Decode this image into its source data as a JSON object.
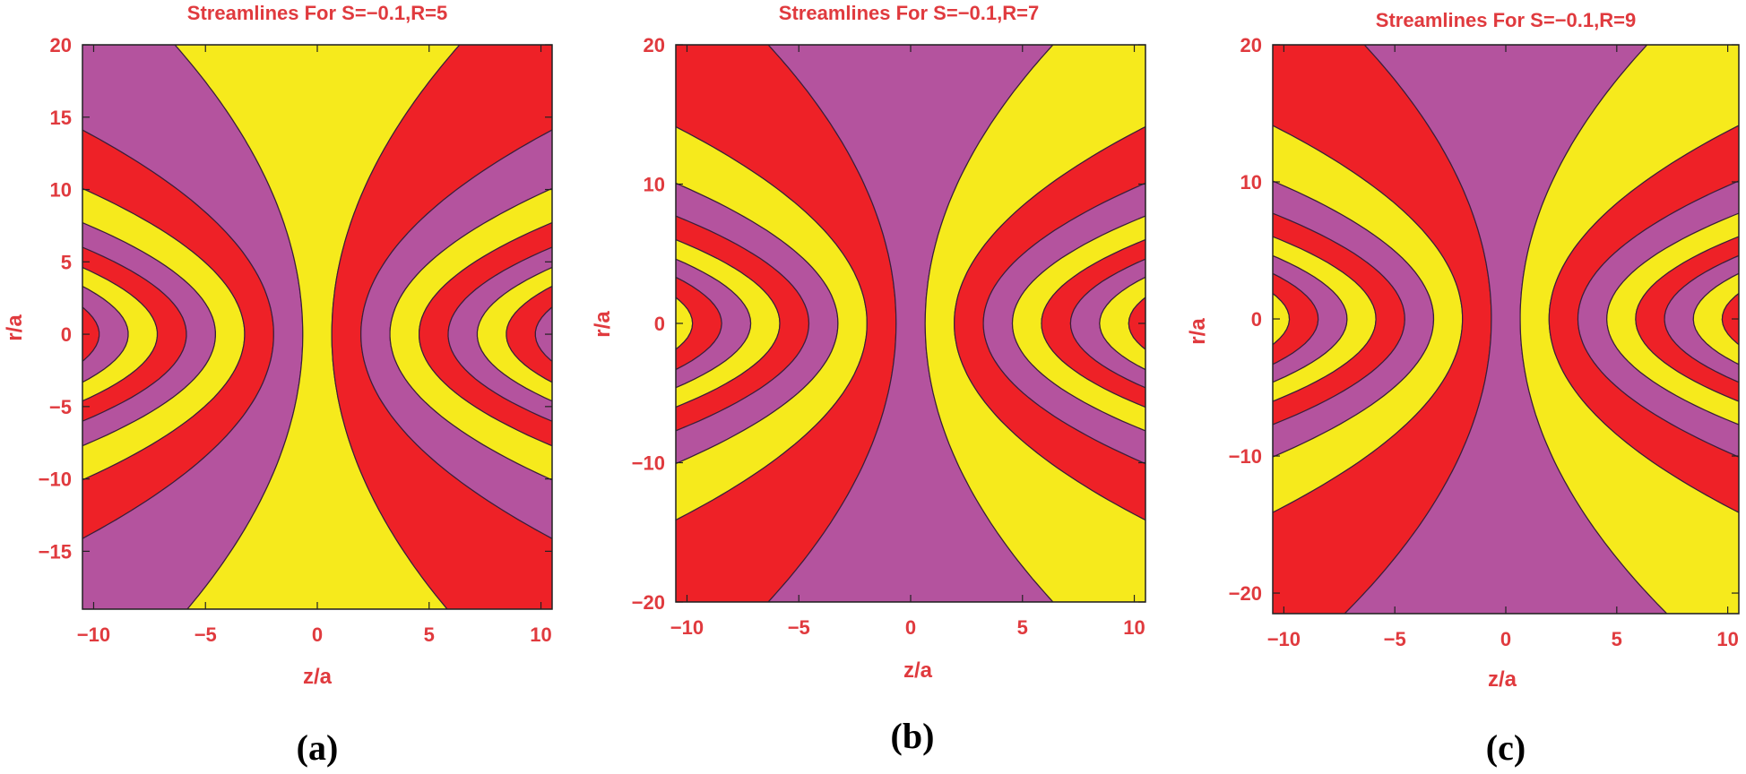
{
  "colors": {
    "yellow": "#f6ea1c",
    "red": "#ee2127",
    "purple": "#b4539e",
    "text": "#e03a3e",
    "line": "#3a1f3a"
  },
  "chart_data": [
    {
      "type": "contour",
      "title": "Streamlines For S=−0.1,R=5",
      "xlabel": "z/a",
      "ylabel": "r/a",
      "xlim": [
        -10.5,
        10.5
      ],
      "ylim": [
        -19,
        20
      ],
      "xticks": [
        -10,
        -5,
        0,
        5,
        10
      ],
      "xtick_labels": [
        "−10",
        "−5",
        "0",
        "5",
        "10"
      ],
      "yticks": [
        -15,
        -10,
        -5,
        0,
        5,
        10,
        15,
        20
      ],
      "ytick_labels": [
        "−15",
        "−10",
        "−5",
        "0",
        "5",
        "10",
        "15",
        "20"
      ],
      "band_colors": [
        "yellow",
        "red",
        "purple"
      ],
      "center_band": "yellow",
      "panel_label": "(a)"
    },
    {
      "type": "contour",
      "title": "Streamlines For S=−0.1,R=7",
      "xlabel": "z/a",
      "ylabel": "r/a",
      "xlim": [
        -10.5,
        10.5
      ],
      "ylim": [
        -20,
        20
      ],
      "xticks": [
        -10,
        -5,
        0,
        5,
        10
      ],
      "xtick_labels": [
        "−10",
        "−5",
        "0",
        "5",
        "10"
      ],
      "yticks": [
        -20,
        -10,
        0,
        10,
        20
      ],
      "ytick_labels": [
        "−20",
        "−10",
        "0",
        "10",
        "20"
      ],
      "band_colors": [
        "purple",
        "yellow",
        "red"
      ],
      "center_band": "purple",
      "panel_label": "(b)"
    },
    {
      "type": "contour",
      "title": "Streamlines For S=−0.1,R=9",
      "xlabel": "z/a",
      "ylabel": "r/a",
      "xlim": [
        -10.5,
        10.5
      ],
      "ylim": [
        -21.5,
        20
      ],
      "xticks": [
        -10,
        -5,
        0,
        5,
        10
      ],
      "xtick_labels": [
        "−10",
        "−5",
        "0",
        "5",
        "10"
      ],
      "yticks": [
        -20,
        -10,
        0,
        10,
        20
      ],
      "ytick_labels": [
        "−20",
        "−10",
        "0",
        "10",
        "20"
      ],
      "band_colors": [
        "purple",
        "yellow",
        "red"
      ],
      "center_band": "purple",
      "panel_label": "(c)"
    }
  ]
}
